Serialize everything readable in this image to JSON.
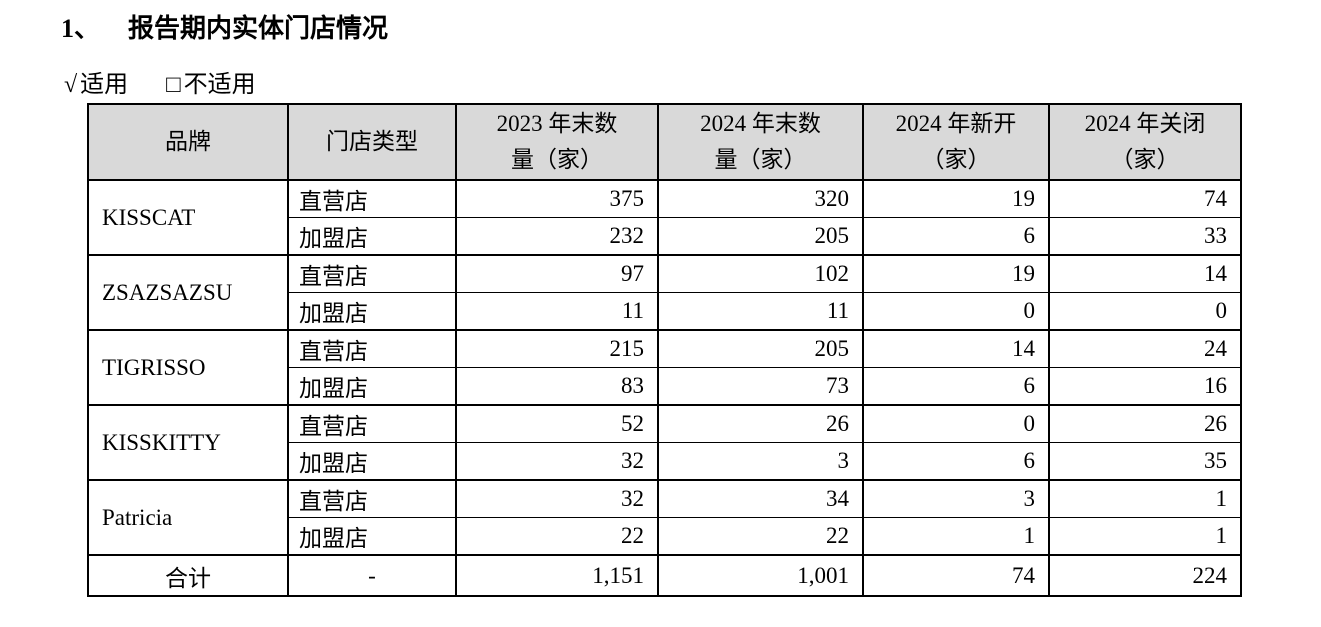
{
  "heading": {
    "number": "1、",
    "title": "报告期内实体门店情况"
  },
  "applicability": {
    "applicable_mark": "√",
    "applicable_label": "适用",
    "not_applicable_mark": "□",
    "not_applicable_label": "不适用"
  },
  "colors": {
    "header_bg": "#d9d9d9",
    "border": "#000000",
    "text": "#000000",
    "page_bg": "#ffffff"
  },
  "table": {
    "headers": [
      "品牌",
      "门店类型",
      "2023 年末数\n量（家）",
      "2024 年末数\n量（家）",
      "2024 年新开\n（家）",
      "2024 年关闭\n（家）"
    ],
    "brand_groups": [
      {
        "brand": "KISSCAT",
        "rows": [
          {
            "store_type": "直营店",
            "end_2023": "375",
            "end_2024": "320",
            "opened_2024": "19",
            "closed_2024": "74"
          },
          {
            "store_type": "加盟店",
            "end_2023": "232",
            "end_2024": "205",
            "opened_2024": "6",
            "closed_2024": "33"
          }
        ]
      },
      {
        "brand": "ZSAZSAZSU",
        "rows": [
          {
            "store_type": "直营店",
            "end_2023": "97",
            "end_2024": "102",
            "opened_2024": "19",
            "closed_2024": "14"
          },
          {
            "store_type": "加盟店",
            "end_2023": "11",
            "end_2024": "11",
            "opened_2024": "0",
            "closed_2024": "0"
          }
        ]
      },
      {
        "brand": "TIGRISSO",
        "rows": [
          {
            "store_type": "直营店",
            "end_2023": "215",
            "end_2024": "205",
            "opened_2024": "14",
            "closed_2024": "24"
          },
          {
            "store_type": "加盟店",
            "end_2023": "83",
            "end_2024": "73",
            "opened_2024": "6",
            "closed_2024": "16"
          }
        ]
      },
      {
        "brand": "KISSKITTY",
        "rows": [
          {
            "store_type": "直营店",
            "end_2023": "52",
            "end_2024": "26",
            "opened_2024": "0",
            "closed_2024": "26"
          },
          {
            "store_type": "加盟店",
            "end_2023": "32",
            "end_2024": "3",
            "opened_2024": "6",
            "closed_2024": "35"
          }
        ]
      },
      {
        "brand": "Patricia",
        "rows": [
          {
            "store_type": "直营店",
            "end_2023": "32",
            "end_2024": "34",
            "opened_2024": "3",
            "closed_2024": "1"
          },
          {
            "store_type": "加盟店",
            "end_2023": "22",
            "end_2024": "22",
            "opened_2024": "1",
            "closed_2024": "1"
          }
        ]
      }
    ],
    "total_row": {
      "label": "合计",
      "store_type": "-",
      "end_2023": "1,151",
      "end_2024": "1,001",
      "opened_2024": "74",
      "closed_2024": "224"
    }
  }
}
